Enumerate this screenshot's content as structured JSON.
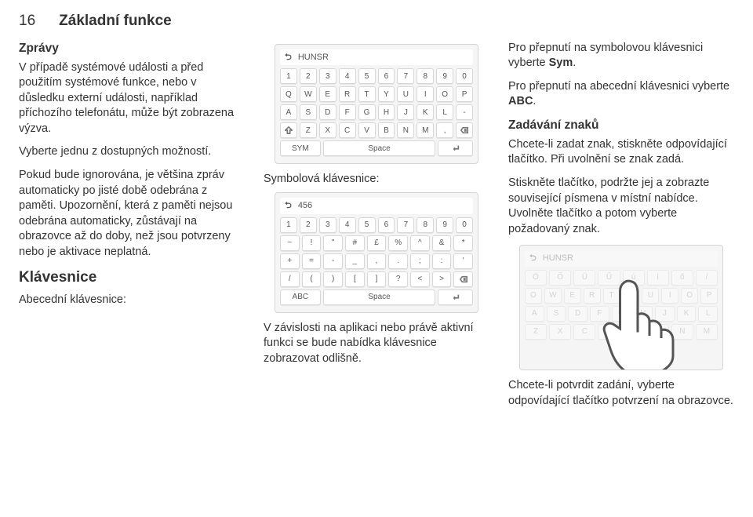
{
  "page": {
    "number": "16",
    "chapter": "Základní funkce"
  },
  "col1": {
    "h_msgs": "Zprávy",
    "p1": "V případě systémové události a před použitím systémové funkce, nebo v důsledku externí události, například příchozího telefonátu, může být zobrazena výzva.",
    "p2": "Vyberte jednu z dostupných možností.",
    "p3": "Pokud bude ignorována, je většina zpráv automaticky po jisté době odebrána z paměti. Upozornění, která z paměti nejsou odebrána automaticky, zůstávají na obrazovce až do doby, než jsou potvrzeny nebo je aktivace neplatná.",
    "h_kbd": "Klávesnice",
    "lab_abc": "Abecední klávesnice:"
  },
  "col2": {
    "lab_sym": "Symbolová klávesnice:",
    "bottom": "V závislosti na aplikaci nebo právě aktivní funkci se bude nabídka klávesnice zobrazovat odlišně."
  },
  "col3": {
    "p1a": "Pro přepnutí na symbolovou klávesnici vyberte ",
    "p1b": "Sym",
    "p1c": ".",
    "p2a": "Pro přepnutí na abecední klávesnici vyberte ",
    "p2b": "ABC",
    "p2c": ".",
    "h_chars": "Zadávání znaků",
    "p3": "Chcete-li zadat znak, stiskněte odpovídající tlačítko. Při uvolnění se znak zadá.",
    "p4": "Stiskněte tlačítko, podržte jej a zobrazte související písmena v místní nabídce. Uvolněte tlačítko a potom vyberte požadovaný znak.",
    "bottom": "Chcete-li potvrdit zadání, vyberte odpovídající tlačítko potvrzení na obrazovce."
  },
  "kbd_abc": {
    "top_label": "HUNSR",
    "r1": [
      "1",
      "2",
      "3",
      "4",
      "5",
      "6",
      "7",
      "8",
      "9",
      "0"
    ],
    "r2": [
      "Q",
      "W",
      "E",
      "R",
      "T",
      "Y",
      "U",
      "I",
      "O",
      "P"
    ],
    "r3": [
      "A",
      "S",
      "D",
      "F",
      "G",
      "H",
      "J",
      "K",
      "L",
      "-"
    ],
    "r4_mid": [
      "Z",
      "X",
      "C",
      "V",
      "B",
      "N",
      "M",
      ","
    ],
    "bottom_left": "SYM",
    "space": "Space"
  },
  "kbd_sym": {
    "top_label": "456",
    "r1": [
      "1",
      "2",
      "3",
      "4",
      "5",
      "6",
      "7",
      "8",
      "9",
      "0"
    ],
    "r2": [
      "~",
      "!",
      "\"",
      "#",
      "£",
      "%",
      "^",
      "&",
      "*"
    ],
    "r3": [
      "+",
      "=",
      "-",
      "_",
      ",",
      ".",
      ";",
      ":",
      "'"
    ],
    "r4_mid": [
      "/",
      "(",
      ")",
      "[",
      "]",
      "?",
      "<",
      ">"
    ],
    "bottom_left": "ABC",
    "space": "Space"
  },
  "kbd_touch": {
    "top_label": "HUNSR",
    "r1": [
      "Ö",
      "Ő",
      "Ü",
      "Ű",
      "ú",
      "í",
      "ő",
      "/"
    ],
    "r2": [
      "O",
      "W",
      "E",
      "R",
      "T",
      "Y",
      "U",
      "I",
      "O",
      "P"
    ],
    "r3": [
      "A",
      "S",
      "D",
      "F",
      "G",
      "H",
      "J",
      "K",
      "L"
    ],
    "r4_mid": [
      "Z",
      "X",
      "C",
      "V",
      "P",
      "B",
      "N",
      "M"
    ]
  }
}
